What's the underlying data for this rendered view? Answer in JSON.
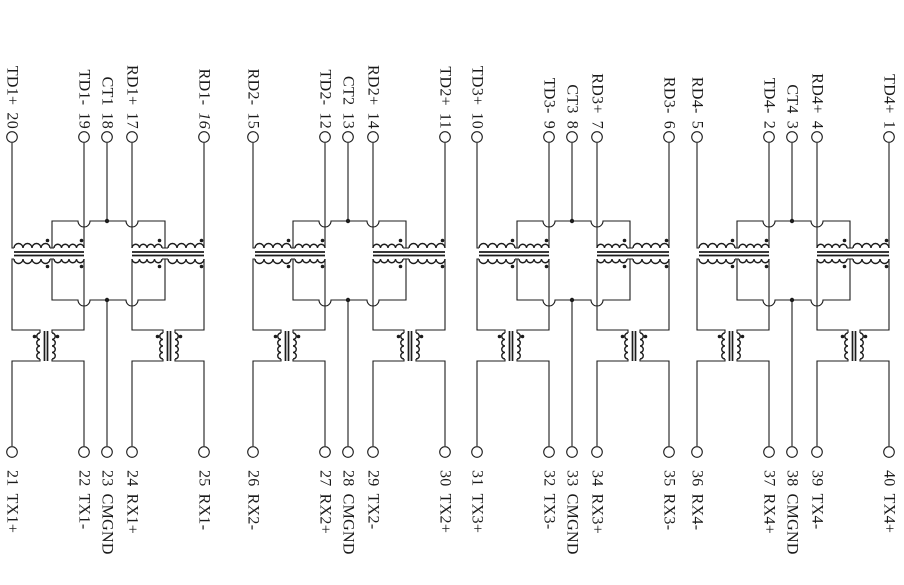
{
  "colors": {
    "background": "#ffffff",
    "wire": "#1c1c1c",
    "label_text": "#1a1a1a"
  },
  "channels": [
    {
      "name": "channel-1",
      "top_pins": [
        {
          "label": "TD1+",
          "pin": "20"
        },
        {
          "label": "TD1-",
          "pin": "19"
        },
        {
          "label": "CT1",
          "pin": "18"
        },
        {
          "label": "RD1+",
          "pin": "17"
        },
        {
          "label": "RD1-",
          "pin": "16",
          "italic": true
        }
      ],
      "bottom_pins": [
        {
          "pin": "21",
          "label": "TX1+"
        },
        {
          "pin": "22",
          "label": "TX1-"
        },
        {
          "pin": "23",
          "label": "CMGND"
        },
        {
          "pin": "24",
          "label": "RX1+"
        },
        {
          "pin": "25",
          "label": "RX1-"
        }
      ]
    },
    {
      "name": "channel-2",
      "top_pins": [
        {
          "label": "RD2-",
          "pin": "15"
        },
        {
          "label": "TD2-",
          "pin": "12"
        },
        {
          "label": "CT2",
          "pin": "13"
        },
        {
          "label": "RD2+",
          "pin": "14"
        },
        {
          "label": "TD2+",
          "pin": "11"
        }
      ],
      "bottom_pins": [
        {
          "pin": "26",
          "label": "RX2-"
        },
        {
          "pin": "27",
          "label": "RX2+"
        },
        {
          "pin": "28",
          "label": "CMGND"
        },
        {
          "pin": "29",
          "label": "TX2-"
        },
        {
          "pin": "30",
          "label": "TX2+"
        }
      ]
    },
    {
      "name": "channel-3",
      "top_pins": [
        {
          "label": "TD3+",
          "pin": "10"
        },
        {
          "label": "TD3-",
          "pin": "9"
        },
        {
          "label": "CT3",
          "pin": "8"
        },
        {
          "label": "RD3+",
          "pin": "7"
        },
        {
          "label": "RD3-",
          "pin": "6"
        }
      ],
      "bottom_pins": [
        {
          "pin": "31",
          "label": "TX3+"
        },
        {
          "pin": "32",
          "label": "TX3-"
        },
        {
          "pin": "33",
          "label": "CMGND"
        },
        {
          "pin": "34",
          "label": "RX3+"
        },
        {
          "pin": "35",
          "label": "RX3-"
        }
      ]
    },
    {
      "name": "channel-4",
      "top_pins": [
        {
          "label": "RD4-",
          "pin": "5"
        },
        {
          "label": "TD4-",
          "pin": "2"
        },
        {
          "label": "CT4",
          "pin": "3"
        },
        {
          "label": "RD4+",
          "pin": "4"
        },
        {
          "label": "TD4+",
          "pin": "1"
        }
      ],
      "bottom_pins": [
        {
          "pin": "36",
          "label": "RX4-"
        },
        {
          "pin": "37",
          "label": "RX4+"
        },
        {
          "pin": "38",
          "label": "CMGND"
        },
        {
          "pin": "39",
          "label": "TX4-"
        },
        {
          "pin": "40",
          "label": "TX4+"
        }
      ]
    }
  ]
}
